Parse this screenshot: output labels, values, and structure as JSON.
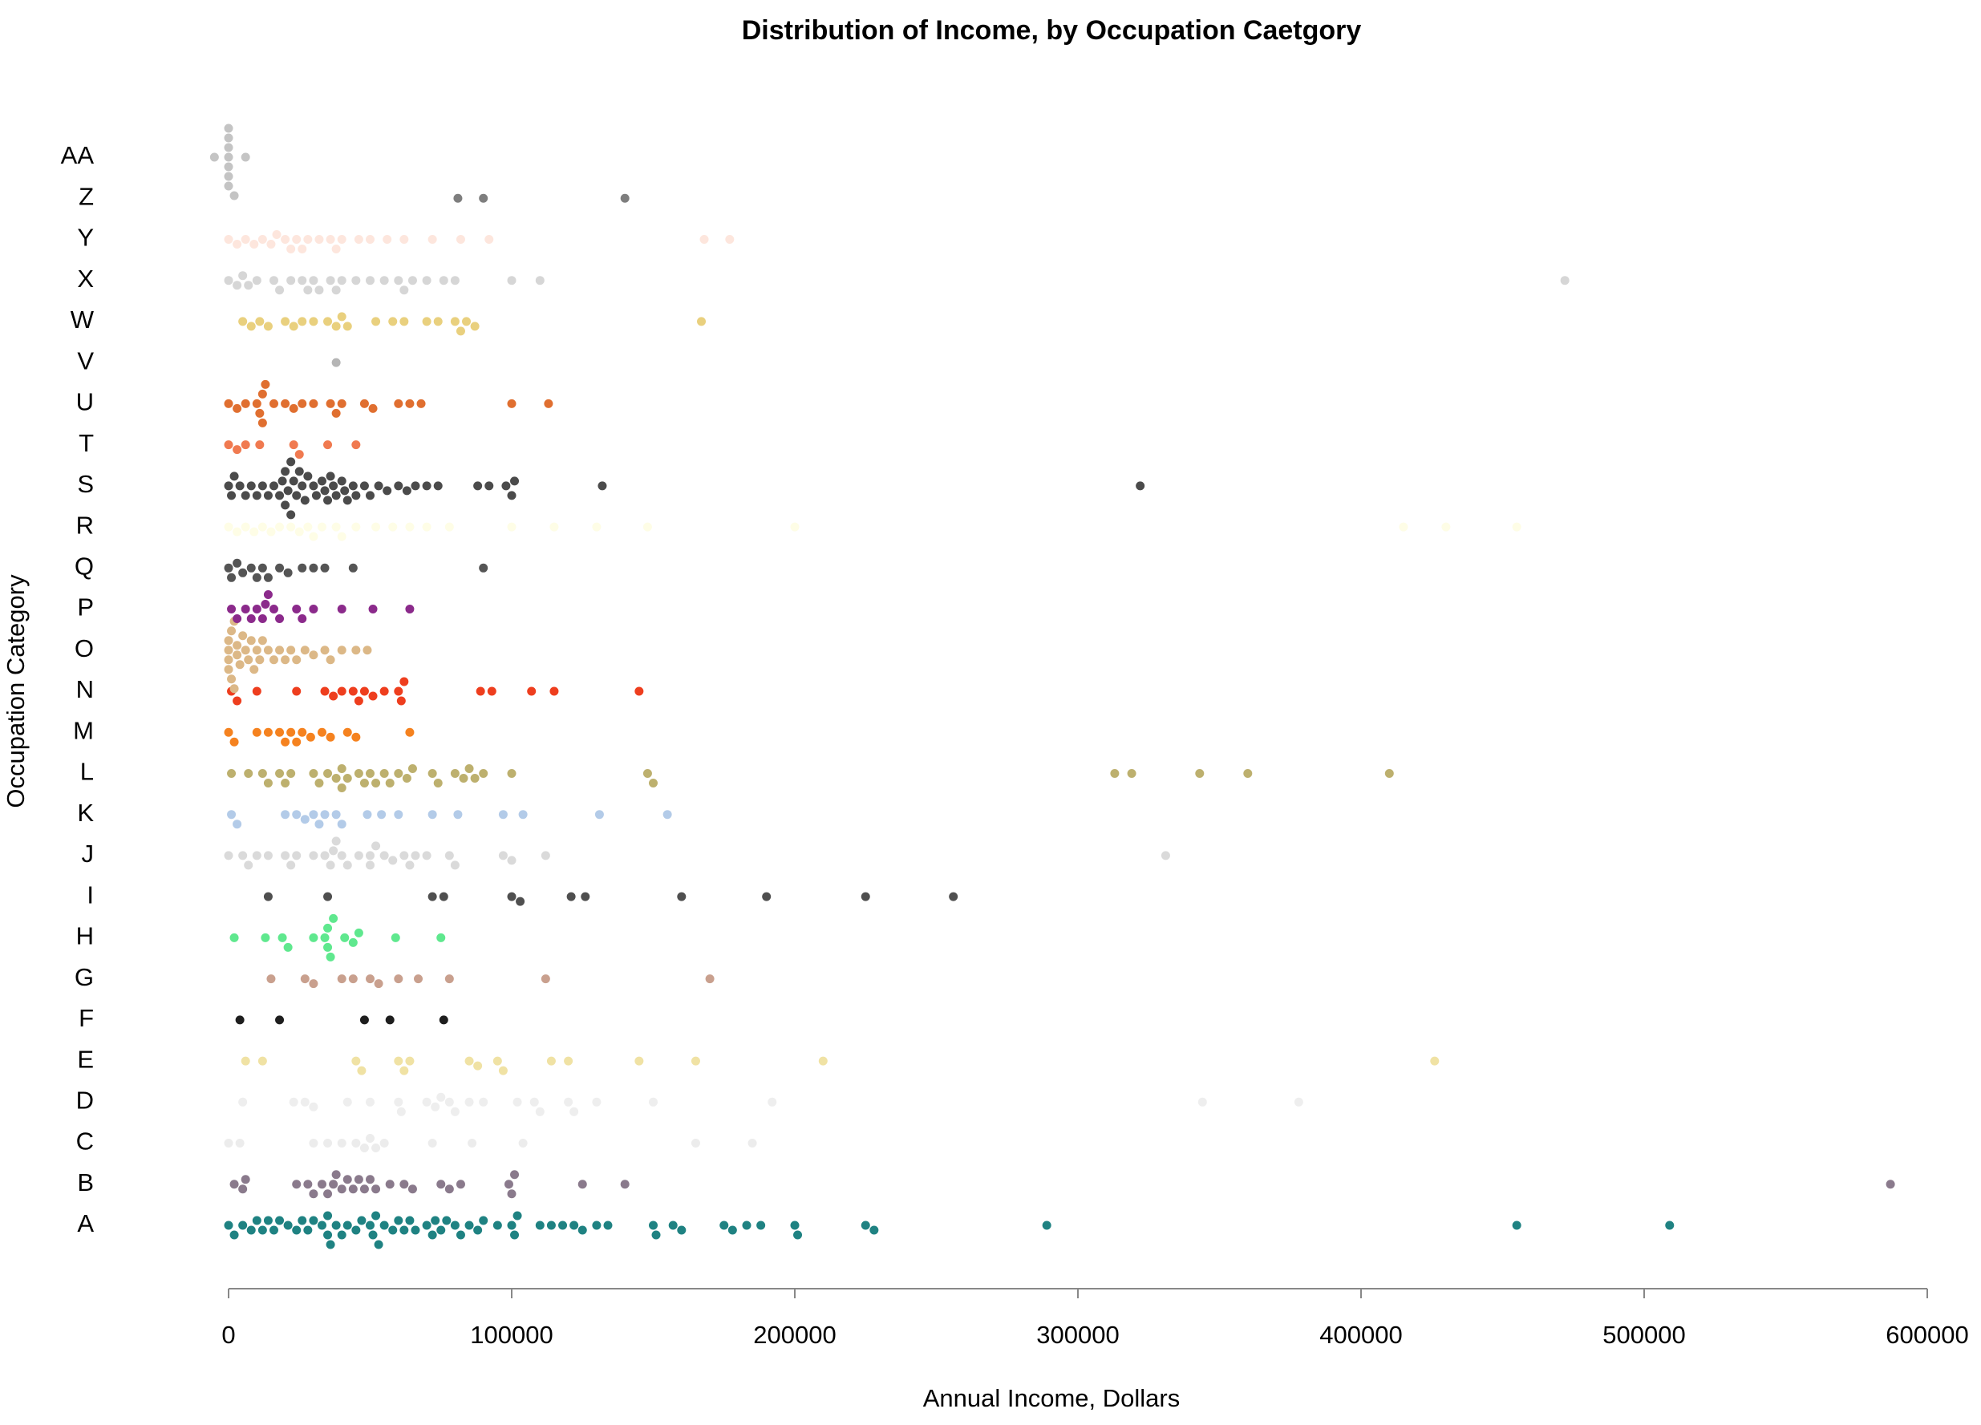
{
  "chart_data": {
    "type": "beeswarm",
    "title": "Distribution of Income, by Occupation Caetgory",
    "x_label": "Annual Income, Dollars",
    "y_label": "Occupation Category",
    "xlim": [
      0,
      600000
    ],
    "xticks": [
      0,
      100000,
      200000,
      300000,
      400000,
      500000,
      600000
    ],
    "categories": [
      "A",
      "B",
      "C",
      "D",
      "E",
      "F",
      "G",
      "H",
      "I",
      "J",
      "K",
      "L",
      "M",
      "N",
      "O",
      "P",
      "Q",
      "R",
      "S",
      "T",
      "U",
      "V",
      "W",
      "X",
      "Y",
      "Z",
      "AA"
    ],
    "colors": [
      "#1f8282",
      "#8a7a8c",
      "#ececec",
      "#eeeeee",
      "#f0e2a4",
      "#1e1e1e",
      "#c9a08e",
      "#5fe88e",
      "#4f4f4f",
      "#dadada",
      "#b3cbe8",
      "#bdb06e",
      "#f5821f",
      "#ee3e1e",
      "#dcb887",
      "#8b2a8b",
      "#555555",
      "#fefde6",
      "#4b4b4b",
      "#f07a50",
      "#e06f30",
      "#b5b5b5",
      "#e9d07e",
      "#d6d6d6",
      "#fde6dd",
      "#7e7e7e",
      "#c4c4c4"
    ],
    "values": [
      [
        0,
        2000,
        5000,
        8000,
        10000,
        12000,
        14000,
        16000,
        18000,
        21000,
        24000,
        26000,
        28000,
        30000,
        33000,
        35000,
        35000,
        36000,
        38000,
        40000,
        42000,
        45000,
        47000,
        50000,
        51000,
        52000,
        53000,
        55000,
        58000,
        60000,
        62000,
        64000,
        66000,
        70000,
        72000,
        73000,
        75000,
        77000,
        80000,
        82000,
        85000,
        88000,
        90000,
        95000,
        100000,
        101000,
        102000,
        110000,
        114000,
        118000,
        122000,
        125000,
        130000,
        134000,
        150000,
        151000,
        157000,
        160000,
        175000,
        178000,
        183000,
        188000,
        200000,
        201000,
        225000,
        228000,
        289000,
        455000,
        509000
      ],
      [
        2000,
        5000,
        6000,
        24000,
        28000,
        30000,
        33000,
        35000,
        37000,
        38000,
        40000,
        42000,
        44000,
        46000,
        48000,
        50000,
        52000,
        57000,
        62000,
        65000,
        75000,
        78000,
        82000,
        99000,
        100000,
        101000,
        125000,
        140000,
        587000
      ],
      [
        0,
        4000,
        30000,
        35000,
        40000,
        45000,
        48000,
        50000,
        52000,
        55000,
        72000,
        86000,
        104000,
        165000,
        185000
      ],
      [
        5000,
        23000,
        27000,
        30000,
        42000,
        50000,
        60000,
        61000,
        70000,
        73000,
        75000,
        78000,
        80000,
        85000,
        90000,
        102000,
        108000,
        110000,
        120000,
        122000,
        130000,
        150000,
        192000,
        344000,
        378000
      ],
      [
        6000,
        12000,
        45000,
        47000,
        60000,
        62000,
        64000,
        85000,
        88000,
        95000,
        97000,
        114000,
        120000,
        145000,
        165000,
        210000,
        426000
      ],
      [
        4000,
        18000,
        48000,
        57000,
        76000
      ],
      [
        15000,
        27000,
        30000,
        40000,
        44000,
        50000,
        53000,
        60000,
        67000,
        78000,
        112000,
        170000
      ],
      [
        2000,
        13000,
        19000,
        21000,
        30000,
        34000,
        35000,
        35000,
        36000,
        37000,
        41000,
        44000,
        46000,
        59000,
        75000
      ],
      [
        14000,
        35000,
        72000,
        76000,
        100000,
        103000,
        121000,
        126000,
        160000,
        190000,
        225000,
        256000
      ],
      [
        0,
        5000,
        7000,
        10000,
        14000,
        20000,
        22000,
        24000,
        30000,
        34000,
        36000,
        37000,
        38000,
        40000,
        42000,
        46000,
        50000,
        50000,
        52000,
        55000,
        58000,
        62000,
        64000,
        66000,
        70000,
        78000,
        80000,
        97000,
        100000,
        112000,
        331000
      ],
      [
        1000,
        3000,
        20000,
        24000,
        27000,
        30000,
        32000,
        34000,
        38000,
        40000,
        49000,
        54000,
        60000,
        72000,
        81000,
        97000,
        104000,
        131000,
        155000
      ],
      [
        1000,
        7000,
        12000,
        14000,
        18000,
        20000,
        22000,
        30000,
        32000,
        35000,
        38000,
        40000,
        40000,
        42000,
        46000,
        48000,
        50000,
        52000,
        55000,
        57000,
        60000,
        63000,
        65000,
        72000,
        74000,
        80000,
        83000,
        85000,
        87000,
        90000,
        100000,
        148000,
        150000,
        313000,
        319000,
        343000,
        360000,
        410000
      ],
      [
        0,
        2000,
        10000,
        14000,
        18000,
        20000,
        22000,
        24000,
        26000,
        29000,
        33000,
        36000,
        42000,
        45000,
        64000
      ],
      [
        1000,
        3000,
        10000,
        24000,
        34000,
        37000,
        40000,
        44000,
        46000,
        48000,
        51000,
        55000,
        60000,
        61000,
        62000,
        89000,
        93000,
        107000,
        115000,
        145000
      ],
      [
        0,
        0,
        0,
        0,
        1000,
        1000,
        2000,
        2000,
        3000,
        3000,
        4000,
        5000,
        6000,
        7000,
        8000,
        9000,
        10000,
        11000,
        12000,
        14000,
        16000,
        18000,
        20000,
        22000,
        24000,
        27000,
        30000,
        34000,
        36000,
        40000,
        45000,
        49000
      ],
      [
        1000,
        3000,
        6000,
        8000,
        10000,
        12000,
        13000,
        14000,
        16000,
        18000,
        24000,
        26000,
        30000,
        40000,
        51000,
        64000
      ],
      [
        0,
        1000,
        3000,
        5000,
        8000,
        10000,
        12000,
        14000,
        18000,
        21000,
        26000,
        30000,
        34000,
        44000,
        90000
      ],
      [
        0,
        3000,
        6000,
        9000,
        12000,
        15000,
        18000,
        22000,
        25000,
        28000,
        30000,
        33000,
        38000,
        40000,
        45000,
        52000,
        58000,
        64000,
        70000,
        78000,
        100000,
        115000,
        130000,
        148000,
        200000,
        415000,
        430000,
        455000
      ],
      [
        0,
        1000,
        2000,
        4000,
        6000,
        8000,
        10000,
        12000,
        14000,
        16000,
        18000,
        19000,
        20000,
        20000,
        21000,
        22000,
        22000,
        23000,
        24000,
        25000,
        26000,
        27000,
        28000,
        30000,
        31000,
        33000,
        34000,
        35000,
        36000,
        37000,
        38000,
        40000,
        41000,
        42000,
        44000,
        45000,
        48000,
        50000,
        53000,
        56000,
        60000,
        63000,
        66000,
        70000,
        74000,
        88000,
        92000,
        98000,
        100000,
        101000,
        132000,
        322000
      ],
      [
        0,
        3000,
        6000,
        11000,
        23000,
        25000,
        35000,
        45000
      ],
      [
        0,
        3000,
        6000,
        10000,
        11000,
        12000,
        12000,
        13000,
        16000,
        20000,
        23000,
        26000,
        30000,
        36000,
        38000,
        40000,
        48000,
        51000,
        60000,
        64000,
        68000,
        100000,
        113000
      ],
      [
        38000
      ],
      [
        5000,
        8000,
        11000,
        14000,
        20000,
        23000,
        26000,
        30000,
        35000,
        38000,
        40000,
        42000,
        52000,
        58000,
        62000,
        70000,
        74000,
        80000,
        82000,
        84000,
        87000,
        167000
      ],
      [
        0,
        3000,
        5000,
        7000,
        10000,
        16000,
        18000,
        22000,
        26000,
        28000,
        30000,
        32000,
        36000,
        38000,
        40000,
        45000,
        50000,
        55000,
        60000,
        62000,
        65000,
        70000,
        76000,
        80000,
        100000,
        110000,
        472000
      ],
      [
        0,
        3000,
        6000,
        9000,
        12000,
        15000,
        17000,
        20000,
        22000,
        24000,
        26000,
        28000,
        32000,
        36000,
        38000,
        40000,
        46000,
        50000,
        56000,
        62000,
        72000,
        82000,
        92000,
        168000,
        177000
      ],
      [
        81000,
        90000,
        140000
      ],
      [
        -5000,
        0,
        0,
        0,
        0,
        0,
        0,
        0,
        2000,
        6000
      ]
    ]
  }
}
